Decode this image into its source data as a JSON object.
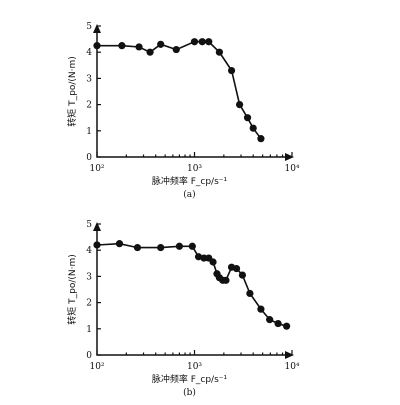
{
  "chart_data": [
    {
      "type": "line",
      "panel_label": "(a)",
      "x_scale": "log",
      "xlabel": "脉冲频率 F_cp/s⁻¹",
      "ylabel": "转矩 T_po/(N·m)",
      "xlim": [
        100,
        10000
      ],
      "ylim": [
        0,
        5
      ],
      "x_ticks": [
        {
          "value": 100,
          "label": "10²"
        },
        {
          "value": 1000,
          "label": "10³"
        },
        {
          "value": 10000,
          "label": "10⁴"
        }
      ],
      "y_ticks": [
        0,
        1,
        2,
        3,
        4,
        5
      ],
      "grid": false,
      "series": [
        {
          "points": [
            {
              "x": 100,
              "y": 4.25
            },
            {
              "x": 180,
              "y": 4.25
            },
            {
              "x": 270,
              "y": 4.2
            },
            {
              "x": 350,
              "y": 4.0
            },
            {
              "x": 450,
              "y": 4.3
            },
            {
              "x": 650,
              "y": 4.1
            },
            {
              "x": 1000,
              "y": 4.4
            },
            {
              "x": 1200,
              "y": 4.4
            },
            {
              "x": 1400,
              "y": 4.4
            },
            {
              "x": 1800,
              "y": 4.0
            },
            {
              "x": 2400,
              "y": 3.3
            },
            {
              "x": 2900,
              "y": 2.0
            },
            {
              "x": 3500,
              "y": 1.5
            },
            {
              "x": 4000,
              "y": 1.1
            },
            {
              "x": 4800,
              "y": 0.7
            }
          ]
        }
      ]
    },
    {
      "type": "line",
      "panel_label": "(b)",
      "x_scale": "log",
      "xlabel": "脉冲频率 F_cp/s⁻¹",
      "ylabel": "转矩 T_po/(N·m)",
      "xlim": [
        100,
        10000
      ],
      "ylim": [
        0,
        5
      ],
      "x_ticks": [
        {
          "value": 100,
          "label": "10²"
        },
        {
          "value": 1000,
          "label": "10³"
        },
        {
          "value": 10000,
          "label": "10⁴"
        }
      ],
      "y_ticks": [
        0,
        1,
        2,
        3,
        4,
        5
      ],
      "grid": false,
      "series": [
        {
          "points": [
            {
              "x": 100,
              "y": 4.2
            },
            {
              "x": 170,
              "y": 4.25
            },
            {
              "x": 260,
              "y": 4.1
            },
            {
              "x": 450,
              "y": 4.1
            },
            {
              "x": 700,
              "y": 4.15
            },
            {
              "x": 950,
              "y": 4.15
            },
            {
              "x": 1100,
              "y": 3.75
            },
            {
              "x": 1250,
              "y": 3.7
            },
            {
              "x": 1400,
              "y": 3.7
            },
            {
              "x": 1550,
              "y": 3.55
            },
            {
              "x": 1700,
              "y": 3.1
            },
            {
              "x": 1800,
              "y": 2.95
            },
            {
              "x": 1950,
              "y": 2.85
            },
            {
              "x": 2100,
              "y": 2.85
            },
            {
              "x": 2400,
              "y": 3.35
            },
            {
              "x": 2700,
              "y": 3.3
            },
            {
              "x": 3100,
              "y": 3.05
            },
            {
              "x": 3700,
              "y": 2.35
            },
            {
              "x": 4800,
              "y": 1.75
            },
            {
              "x": 5900,
              "y": 1.35
            },
            {
              "x": 7200,
              "y": 1.2
            },
            {
              "x": 8800,
              "y": 1.1
            }
          ]
        }
      ]
    }
  ]
}
